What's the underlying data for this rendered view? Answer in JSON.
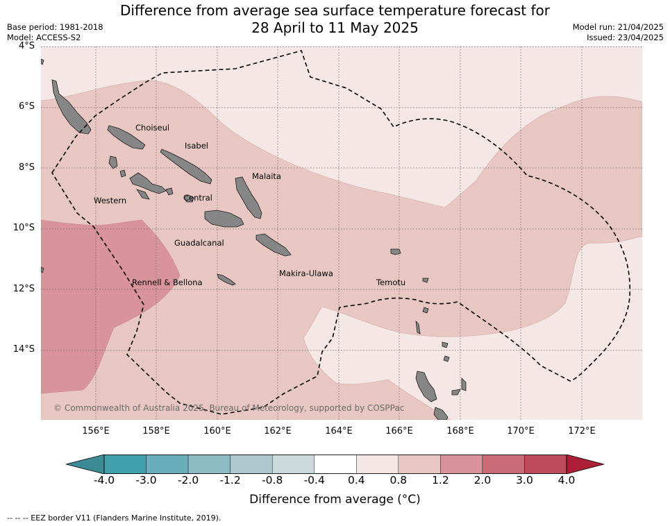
{
  "title_line1": "Difference from average sea surface temperature forecast for",
  "title_line2": "28 April to 11 May 2025",
  "base_period": "Base period: 1981-2018",
  "model": "Model: ACCESS-S2",
  "model_run": "Model run: 21/04/2025",
  "issued": "Issued: 23/04/2025",
  "lat_labels": [
    "4°S",
    "6°S",
    "8°S",
    "10°S",
    "12°S",
    "14°S"
  ],
  "lon_labels": [
    "156°E",
    "158°E",
    "160°E",
    "162°E",
    "164°E",
    "166°E",
    "168°E",
    "170°E",
    "172°E"
  ],
  "places": {
    "choiseul": "Choiseul",
    "isabel": "Isabel",
    "malaita": "Malaita",
    "western": "Western",
    "central": "Central",
    "guadalcanal": "Guadalcanal",
    "rennell": "Rennell & Bellona",
    "makira": "Makira-Ulawa",
    "temotu": "Temotu"
  },
  "copyright": "© Commonwealth of Australia 2025, Bureau of Meteorology, supported by COSPPac",
  "colorbar": {
    "label": "Difference from average (°C)",
    "ticks": [
      "-4.0",
      "-3.0",
      "-2.0",
      "-1.2",
      "-0.8",
      "-0.4",
      "0.4",
      "0.8",
      "1.2",
      "2.0",
      "3.0",
      "4.0"
    ],
    "colors": [
      "#42a0ad",
      "#6aadbb",
      "#8dbcc5",
      "#acc8cc",
      "#c9d9dc",
      "#ffffff",
      "#f4e7e5",
      "#e8c7c2",
      "#d9939a",
      "#c96b77",
      "#bd4b5a"
    ],
    "low_extend_color": "#3c8a95",
    "high_extend_color": "#ac1f36"
  },
  "footer": "--  --  -- EEZ border V11 (Flanders Marine Institute, 2019)."
}
